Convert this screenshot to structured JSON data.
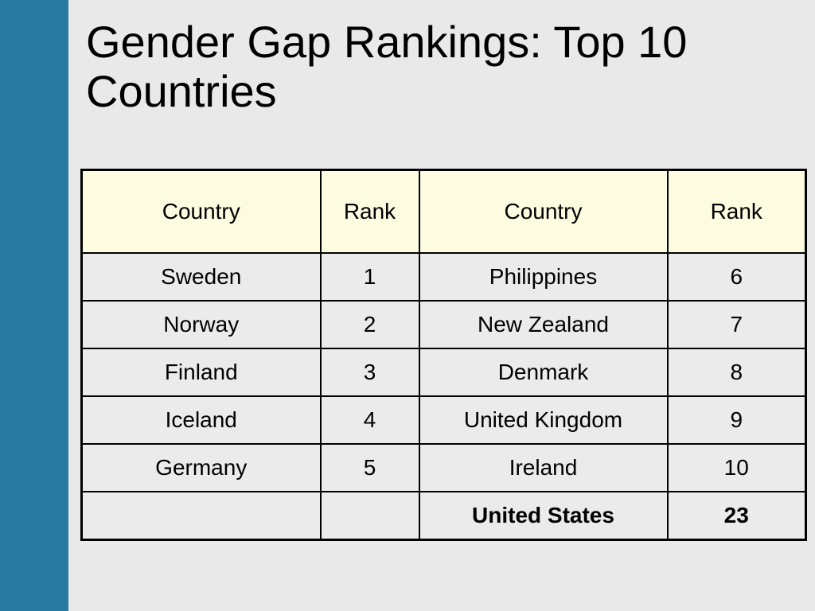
{
  "slide": {
    "title": "Gender Gap Rankings: Top 10 Countries"
  },
  "colors": {
    "side_bar": "#2878a0",
    "background": "#e9e9e9",
    "header_fill": "#fdfbe0"
  },
  "table": {
    "headers": [
      "Country",
      "Rank",
      "Country",
      "Rank"
    ],
    "rows": [
      [
        "Sweden",
        "1",
        "Philippines",
        "6"
      ],
      [
        "Norway",
        "2",
        "New Zealand",
        "7"
      ],
      [
        "Finland",
        "3",
        "Denmark",
        "8"
      ],
      [
        "Iceland",
        "4",
        "United Kingdom",
        "9"
      ],
      [
        "Germany",
        "5",
        "Ireland",
        "10"
      ],
      [
        "",
        "",
        "United States",
        "23"
      ]
    ]
  }
}
